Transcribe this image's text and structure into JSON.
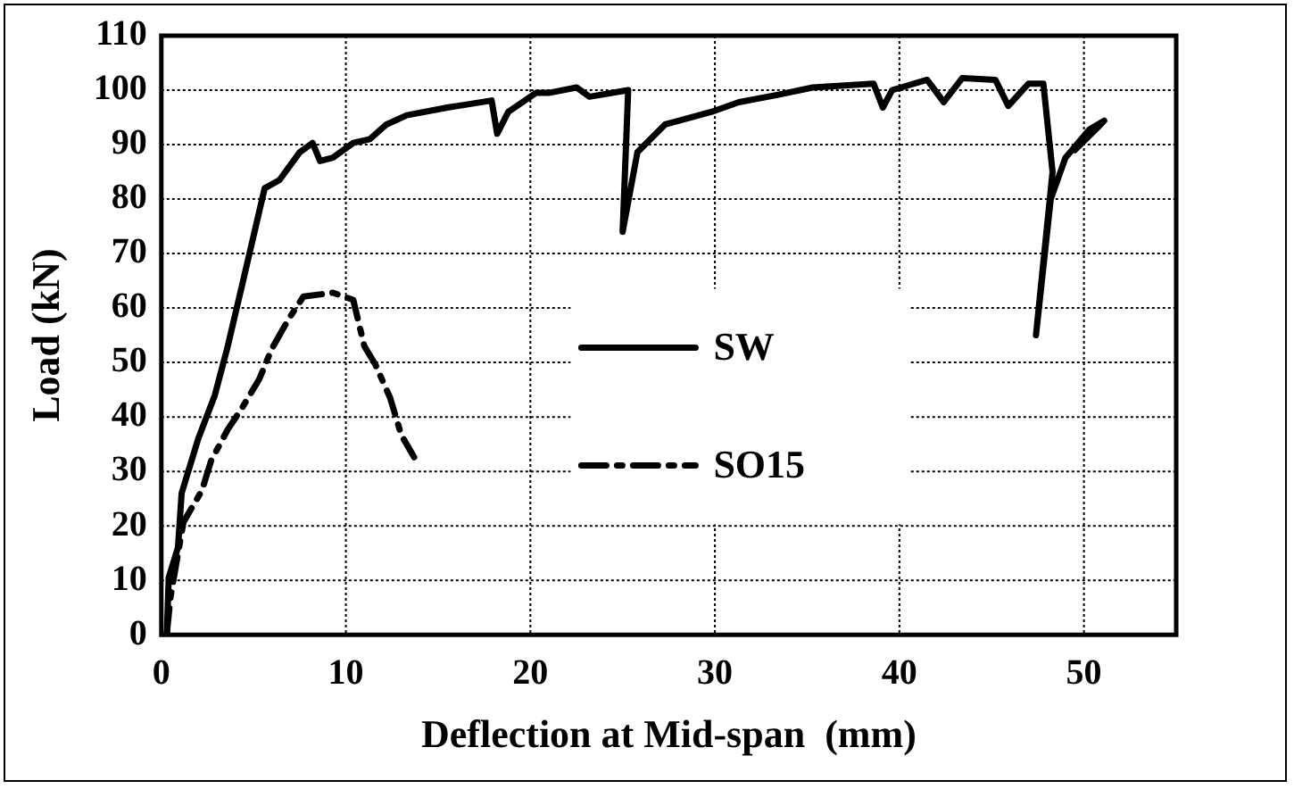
{
  "chart_data": {
    "type": "line",
    "xlabel": "Deflection at Mid-span  (mm)",
    "ylabel": "Load (kN)",
    "xlim": [
      0,
      55
    ],
    "xticks": [
      0,
      10,
      20,
      30,
      40,
      50
    ],
    "ylim": [
      0,
      110
    ],
    "yticks": [
      0,
      10,
      20,
      30,
      40,
      50,
      60,
      70,
      80,
      90,
      100,
      110
    ],
    "grid": true,
    "legend": "center",
    "marker": "none",
    "series": [
      {
        "name": "SW",
        "color": "#000000",
        "line_style": "solid",
        "x": [
          0.3,
          0.4,
          0.9,
          1.1,
          2,
          2.9,
          3.6,
          4.5,
          5.6,
          6.4,
          7.5,
          8.2,
          8.6,
          9.3,
          10.4,
          11.3,
          12.2,
          13.3,
          15.5,
          17.9,
          18.2,
          18.8,
          20.3,
          21,
          22.5,
          23.2,
          25.3,
          25,
          25.8,
          27.3,
          29.8,
          31.3,
          33.5,
          35.3,
          38.6,
          39.1,
          39.6,
          41.5,
          42.4,
          43.4,
          45.2,
          45.9,
          47,
          47.8,
          48.3,
          47.4,
          48.2,
          49,
          50.3,
          51.1,
          50.7,
          49.5
        ],
        "values": [
          0.3,
          10.5,
          16,
          26,
          36,
          44,
          53,
          66,
          82,
          83.5,
          88.6,
          90.3,
          87,
          87.6,
          90.3,
          91,
          93.7,
          95.4,
          96.8,
          98.1,
          92,
          96,
          99.5,
          99.5,
          100.5,
          98.8,
          100,
          74,
          88.6,
          93.7,
          96,
          97.8,
          99.2,
          100.5,
          101.2,
          96.8,
          100,
          101.9,
          97.8,
          102.2,
          101.9,
          97.1,
          101.2,
          101.2,
          85,
          55,
          80,
          87.6,
          92.8,
          94.4,
          93,
          89
        ]
      },
      {
        "name": "SO15",
        "color": "#000000",
        "line_style": "dashed",
        "x": [
          0.3,
          0.5,
          1.2,
          2.2,
          2.7,
          3.6,
          4.4,
          5.3,
          6,
          6.9,
          7.7,
          9.3,
          10.4,
          11,
          11.6,
          12.4,
          13,
          13.7
        ],
        "values": [
          0.3,
          7,
          20.7,
          26.5,
          32,
          37.7,
          41.8,
          46.9,
          52.6,
          58,
          62.1,
          62.8,
          61.5,
          53,
          49.6,
          43.5,
          36.7,
          32.6
        ]
      }
    ]
  }
}
